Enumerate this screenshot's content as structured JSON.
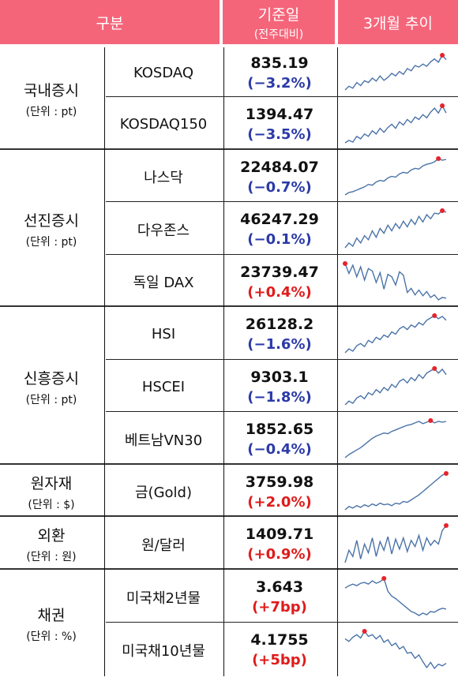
{
  "header": {
    "category_label": "구분",
    "base_label": "기준일",
    "base_sub": "(전주대비)",
    "trend_label": "3개월 추이"
  },
  "colors": {
    "header_bg": "#f5657a",
    "negative": "#2b3aa8",
    "positive": "#e01b1b",
    "line": "#4a73a8",
    "peak": "#e8222a"
  },
  "groups": [
    {
      "name": "국내증시",
      "unit": "(단위 : pt)"
    },
    {
      "name": "선진증시",
      "unit": "(단위 : pt)"
    },
    {
      "name": "신흥증시",
      "unit": "(단위 : pt)"
    },
    {
      "name": "원자재",
      "unit": "(단위 : $)"
    },
    {
      "name": "외환",
      "unit": "(단위 : 원)"
    },
    {
      "name": "채권",
      "unit": "(단위 : %)"
    }
  ],
  "rows": [
    {
      "item": "KOSDAQ",
      "value": "835.19",
      "change": "(−3.2%)",
      "direction": "negative",
      "trend": [
        3,
        4,
        3.5,
        5,
        4.2,
        5.5,
        5,
        6.2,
        5.4,
        6.8,
        5.6,
        6.4,
        7.5,
        6.8,
        8,
        7.2,
        8.8,
        8.2,
        9.6,
        9.2,
        10,
        9.4,
        10.6,
        11.4,
        10.5,
        12.4,
        11.2
      ]
    },
    {
      "item": "KOSDAQ150",
      "value": "1394.47",
      "change": "(−3.5%)",
      "direction": "negative",
      "trend": [
        3,
        3.6,
        3.2,
        4.6,
        4,
        5.2,
        4.6,
        6,
        5.2,
        6.6,
        5.6,
        6.8,
        7.6,
        6.6,
        8.2,
        7.4,
        8.8,
        8,
        9.4,
        8.8,
        10,
        9.2,
        10.6,
        11.6,
        10.4,
        12.2,
        10.4
      ]
    },
    {
      "item": "나스닥",
      "value": "22484.07",
      "change": "(−0.7%)",
      "direction": "negative",
      "trend": [
        2.6,
        3.2,
        3.4,
        3.8,
        4.2,
        4.6,
        5.2,
        5,
        5.8,
        6.2,
        6,
        6.8,
        7.2,
        7,
        7.8,
        8.2,
        8,
        8.8,
        9.2,
        9,
        9.8,
        10.2,
        10.4,
        10.8,
        11.6,
        11.2,
        11.4
      ]
    },
    {
      "item": "다우존스",
      "value": "46247.29",
      "change": "(−0.1%)",
      "direction": "negative",
      "trend": [
        2.4,
        3.6,
        2.8,
        4.8,
        3.6,
        5.4,
        4.4,
        6.6,
        5,
        7.2,
        6,
        8,
        6.6,
        8.4,
        7.2,
        9,
        7.6,
        9.4,
        8.2,
        10.2,
        8.8,
        10.6,
        9.6,
        11,
        10.8,
        11.6,
        11.2
      ]
    },
    {
      "item": "독일 DAX",
      "value": "23739.47",
      "change": "(+0.4%)",
      "direction": "positive",
      "trend": [
        11.4,
        9,
        11,
        8.2,
        10.6,
        7.4,
        10.2,
        9.6,
        6.8,
        9.2,
        5.2,
        8.8,
        8.2,
        6.2,
        9.4,
        8.6,
        4.4,
        5.4,
        3.8,
        5,
        3.6,
        4.6,
        3.2,
        3.8,
        2.6,
        3.2,
        3
      ]
    },
    {
      "item": "HSI",
      "value": "26128.2",
      "change": "(−1.6%)",
      "direction": "negative",
      "trend": [
        2.4,
        3.4,
        2.8,
        4.2,
        4.8,
        4,
        5.6,
        5,
        6.4,
        5.8,
        7,
        6.4,
        7.8,
        7.2,
        8.6,
        9.2,
        8.4,
        9.6,
        9,
        10.2,
        9.6,
        10.8,
        11.4,
        12,
        11.2,
        11.8,
        10.8
      ]
    },
    {
      "item": "HSCEI",
      "value": "9303.1",
      "change": "(−1.8%)",
      "direction": "negative",
      "trend": [
        2.2,
        3.2,
        2.6,
        4,
        4.6,
        3.8,
        5.4,
        4.8,
        6.2,
        5.4,
        6.8,
        6,
        7.6,
        6.8,
        8.4,
        9,
        8,
        9.4,
        8.6,
        10.2,
        9.2,
        10.6,
        11.2,
        11.8,
        10.6,
        11.6,
        10.2
      ]
    },
    {
      "item": "베트남VN30",
      "value": "1852.65",
      "change": "(−0.4%)",
      "direction": "negative",
      "trend": [
        2.2,
        3,
        3.6,
        4.2,
        4.8,
        5.6,
        6.4,
        7.2,
        7.8,
        8.2,
        8.6,
        8.4,
        9,
        9.4,
        9.8,
        10.2,
        10.6,
        10.8,
        11.2,
        11.6,
        11,
        11.4,
        11.8,
        11.2,
        11.6,
        11.4,
        11.6
      ]
    },
    {
      "item": "금(Gold)",
      "value": "3759.98",
      "change": "(+2.0%)",
      "direction": "positive",
      "trend": [
        3.2,
        4,
        3.6,
        4.2,
        3.8,
        4.4,
        4,
        4.6,
        4.2,
        4.8,
        4.4,
        4.6,
        4.2,
        4.8,
        4.6,
        5.2,
        5,
        5.6,
        6.2,
        6.8,
        7.6,
        8.4,
        9.2,
        10,
        10.8,
        11.6,
        12
      ]
    },
    {
      "item": "원/달러",
      "value": "1409.71",
      "change": "(+0.9%)",
      "direction": "positive",
      "trend": [
        6,
        8,
        7,
        9.6,
        6.6,
        9,
        7.6,
        10,
        7,
        9.4,
        8,
        10.2,
        7.4,
        9.8,
        8.2,
        10,
        7.8,
        9.6,
        8.6,
        10.4,
        8,
        10,
        8.8,
        9.6,
        9,
        11.2,
        12
      ]
    },
    {
      "item": "미국채2년물",
      "value": "3.643",
      "change": "(+7bp)",
      "direction": "positive",
      "trend": [
        9.6,
        10.2,
        10.6,
        10.2,
        10.8,
        11,
        10.6,
        11.4,
        10.8,
        11.2,
        12,
        8.8,
        7.6,
        7,
        6.2,
        5.4,
        4.6,
        3.8,
        3.4,
        2.8,
        3.4,
        3,
        3.8,
        3.6,
        4.2,
        4.6,
        4.4
      ]
    },
    {
      "item": "미국채10년물",
      "value": "4.1755",
      "change": "(+5bp)",
      "direction": "positive",
      "trend": [
        10.2,
        9.6,
        10.6,
        11.2,
        10.4,
        12,
        10.8,
        11.2,
        10.2,
        11,
        9.4,
        10,
        8.6,
        9.2,
        7.8,
        8.4,
        6.8,
        7,
        5.6,
        6.4,
        4.8,
        3.4,
        4.6,
        3.2,
        4.2,
        3.8,
        4.4
      ]
    }
  ]
}
